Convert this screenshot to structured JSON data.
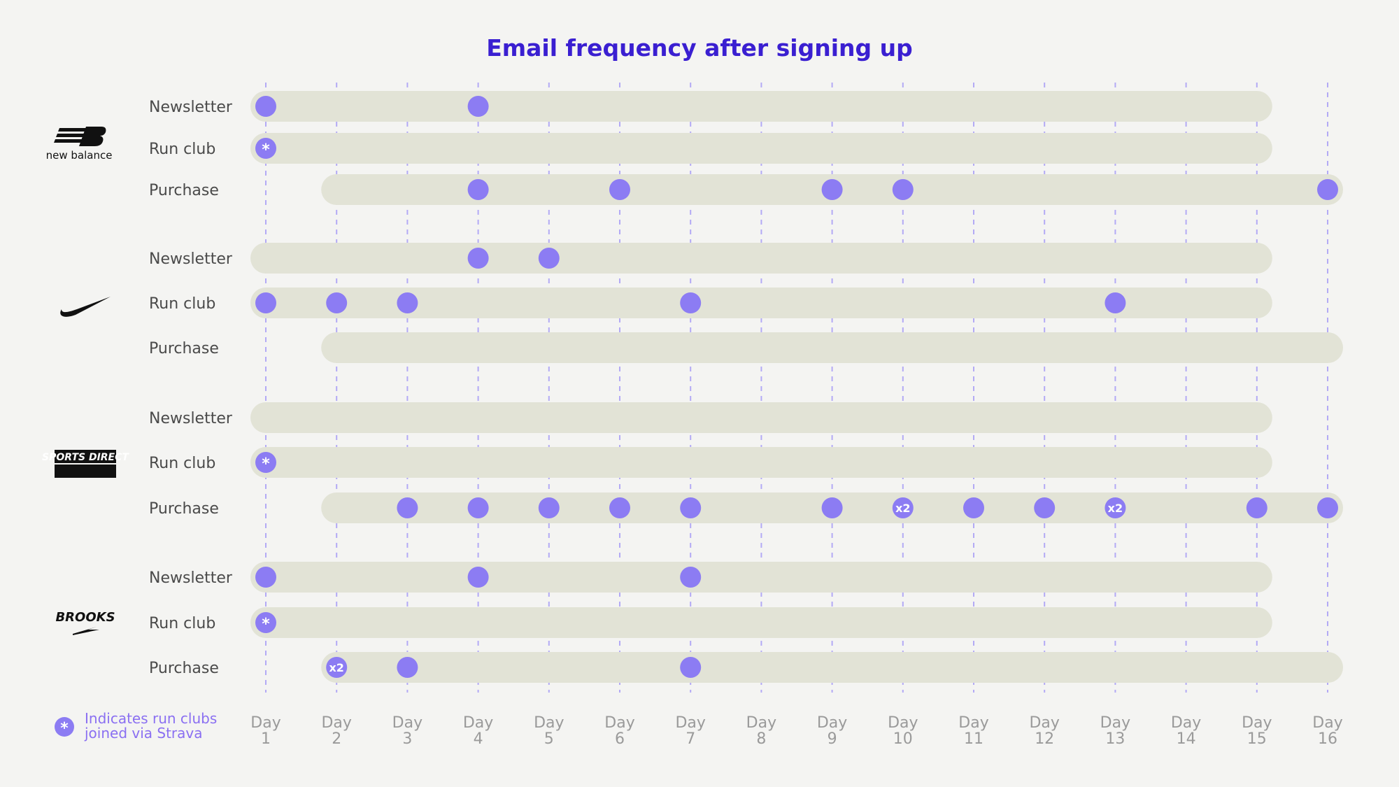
{
  "colors": {
    "title": "#3a1fd1",
    "dot": "#8c7cf3",
    "track": "#e2e3d6",
    "grid": "#b3aaf5",
    "legend": "#8a6ff2"
  },
  "brands": [
    {
      "name": "New Balance",
      "logo_text": "new balance",
      "icon": "new-balance-logo"
    },
    {
      "name": "Nike",
      "logo_text": "",
      "icon": "nike-swoosh-logo"
    },
    {
      "name": "Sports Direct",
      "logo_text": "SPORTS DIRECT",
      "icon": "sports-direct-logo"
    },
    {
      "name": "Brooks",
      "logo_text": "BROOKS",
      "icon": "brooks-logo"
    }
  ],
  "chart_data": {
    "type": "scatter",
    "title": "Email frequency after signing up",
    "x": [
      "Day 1",
      "Day 2",
      "Day 3",
      "Day 4",
      "Day 5",
      "Day 6",
      "Day 7",
      "Day 8",
      "Day 9",
      "Day 10",
      "Day 11",
      "Day 12",
      "Day 13",
      "Day 14",
      "Day 15",
      "Day 16"
    ],
    "tick_lines": [
      [
        "Day",
        "1"
      ],
      [
        "Day",
        "2"
      ],
      [
        "Day",
        "3"
      ],
      [
        "Day",
        "4"
      ],
      [
        "Day",
        "5"
      ],
      [
        "Day",
        "6"
      ],
      [
        "Day",
        "7"
      ],
      [
        "Day",
        "8"
      ],
      [
        "Day",
        "9"
      ],
      [
        "Day",
        "10"
      ],
      [
        "Day",
        "11"
      ],
      [
        "Day",
        "12"
      ],
      [
        "Day",
        "13"
      ],
      [
        "Day",
        "14"
      ],
      [
        "Day",
        "15"
      ],
      [
        "Day",
        "16"
      ]
    ],
    "series": [
      {
        "brand": "New Balance",
        "name": "Newsletter",
        "start_day": 1,
        "end_day": 15,
        "emails": [
          {
            "day": 1,
            "count": 1
          },
          {
            "day": 4,
            "count": 1
          }
        ]
      },
      {
        "brand": "New Balance",
        "name": "Run club",
        "start_day": 1,
        "end_day": 15,
        "emails": [
          {
            "day": 1,
            "count": 1,
            "strava": true
          }
        ]
      },
      {
        "brand": "New Balance",
        "name": "Purchase",
        "start_day": 2,
        "end_day": 16,
        "emails": [
          {
            "day": 4,
            "count": 1
          },
          {
            "day": 6,
            "count": 1
          },
          {
            "day": 9,
            "count": 1
          },
          {
            "day": 10,
            "count": 1
          },
          {
            "day": 16,
            "count": 1
          }
        ]
      },
      {
        "brand": "Nike",
        "name": "Newsletter",
        "start_day": 1,
        "end_day": 15,
        "emails": [
          {
            "day": 4,
            "count": 1
          },
          {
            "day": 5,
            "count": 1
          }
        ]
      },
      {
        "brand": "Nike",
        "name": "Run club",
        "start_day": 1,
        "end_day": 15,
        "emails": [
          {
            "day": 1,
            "count": 1
          },
          {
            "day": 2,
            "count": 1
          },
          {
            "day": 3,
            "count": 1
          },
          {
            "day": 7,
            "count": 1
          },
          {
            "day": 13,
            "count": 1
          }
        ]
      },
      {
        "brand": "Nike",
        "name": "Purchase",
        "start_day": 2,
        "end_day": 16,
        "emails": []
      },
      {
        "brand": "Sports Direct",
        "name": "Newsletter",
        "start_day": 1,
        "end_day": 15,
        "emails": []
      },
      {
        "brand": "Sports Direct",
        "name": "Run club",
        "start_day": 1,
        "end_day": 15,
        "emails": [
          {
            "day": 1,
            "count": 1,
            "strava": true
          }
        ]
      },
      {
        "brand": "Sports Direct",
        "name": "Purchase",
        "start_day": 2,
        "end_day": 16,
        "emails": [
          {
            "day": 3,
            "count": 1
          },
          {
            "day": 4,
            "count": 1
          },
          {
            "day": 5,
            "count": 1
          },
          {
            "day": 6,
            "count": 1
          },
          {
            "day": 7,
            "count": 1
          },
          {
            "day": 9,
            "count": 1
          },
          {
            "day": 10,
            "count": 2
          },
          {
            "day": 11,
            "count": 1
          },
          {
            "day": 12,
            "count": 1
          },
          {
            "day": 13,
            "count": 2
          },
          {
            "day": 15,
            "count": 1
          },
          {
            "day": 16,
            "count": 1
          }
        ]
      },
      {
        "brand": "Brooks",
        "name": "Newsletter",
        "start_day": 1,
        "end_day": 15,
        "emails": [
          {
            "day": 1,
            "count": 1
          },
          {
            "day": 4,
            "count": 1
          },
          {
            "day": 7,
            "count": 1
          }
        ]
      },
      {
        "brand": "Brooks",
        "name": "Run club",
        "start_day": 1,
        "end_day": 15,
        "emails": [
          {
            "day": 1,
            "count": 1,
            "strava": true
          }
        ]
      },
      {
        "brand": "Brooks",
        "name": "Purchase",
        "start_day": 2,
        "end_day": 16,
        "emails": [
          {
            "day": 2,
            "count": 2
          },
          {
            "day": 3,
            "count": 1
          },
          {
            "day": 7,
            "count": 1
          }
        ]
      }
    ],
    "multiplier_label": "x2",
    "legend": {
      "line1": "Indicates run clubs",
      "line2": "joined via Strava"
    }
  }
}
